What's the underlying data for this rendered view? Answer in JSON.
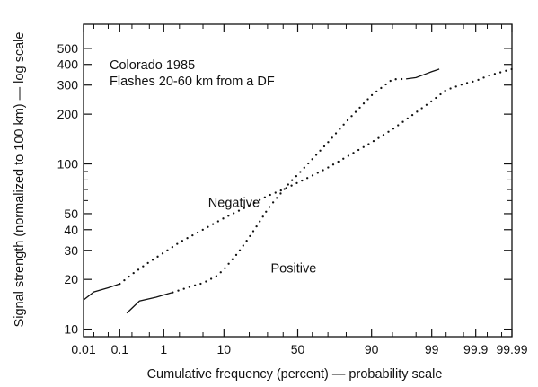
{
  "chart_data": {
    "type": "line",
    "title": "Colorado 1985",
    "subtitle": "Flashes 20-60 km from a DF",
    "xlabel": "Cumulative frequency (percent) — probability scale",
    "ylabel": "Signal strength (normalized to 100 km) — log scale",
    "x_scale": "probability",
    "y_scale": "log",
    "xlim": [
      0.01,
      99.99
    ],
    "ylim": [
      9,
      700
    ],
    "grid": false,
    "x_ticks": [
      0.01,
      0.1,
      1,
      10,
      50,
      90,
      99,
      99.9,
      99.99
    ],
    "x_tick_labels": [
      "0.01",
      "0.1",
      "1",
      "10",
      "50",
      "90",
      "99",
      "99.9",
      "99.99"
    ],
    "y_ticks": [
      10,
      20,
      30,
      40,
      50,
      100,
      200,
      300,
      400,
      500
    ],
    "y_tick_labels": [
      "10",
      "20",
      "30",
      "40",
      "50",
      "100",
      "200",
      "300",
      "400",
      "500"
    ],
    "series": [
      {
        "name": "Negative",
        "points": [
          [
            0.01,
            15
          ],
          [
            0.02,
            16.8
          ],
          [
            0.05,
            17.8
          ],
          [
            0.1,
            18.8
          ],
          [
            0.2,
            21.5
          ],
          [
            0.5,
            25.5
          ],
          [
            1,
            29
          ],
          [
            2,
            33.5
          ],
          [
            5,
            40
          ],
          [
            10,
            47
          ],
          [
            20,
            56
          ],
          [
            30,
            64
          ],
          [
            40,
            70
          ],
          [
            50,
            77
          ],
          [
            60,
            85
          ],
          [
            70,
            95
          ],
          [
            80,
            110
          ],
          [
            90,
            135
          ],
          [
            95,
            162
          ],
          [
            98,
            205
          ],
          [
            99,
            240
          ],
          [
            99.5,
            280
          ],
          [
            99.8,
            305
          ],
          [
            99.9,
            318
          ],
          [
            99.95,
            340
          ],
          [
            99.98,
            360
          ],
          [
            99.99,
            375
          ]
        ]
      },
      {
        "name": "Positive",
        "points": [
          [
            0.15,
            12.5
          ],
          [
            0.3,
            14.8
          ],
          [
            0.7,
            15.6
          ],
          [
            1,
            16.1
          ],
          [
            1.5,
            16.7
          ],
          [
            2,
            17.2
          ],
          [
            3,
            18
          ],
          [
            5,
            19
          ],
          [
            8,
            21
          ],
          [
            10,
            23
          ],
          [
            15,
            29
          ],
          [
            20,
            36
          ],
          [
            25,
            44
          ],
          [
            30,
            53
          ],
          [
            35,
            61
          ],
          [
            40,
            69
          ],
          [
            45,
            78
          ],
          [
            50,
            86
          ],
          [
            60,
            107
          ],
          [
            70,
            135
          ],
          [
            80,
            180
          ],
          [
            90,
            260
          ],
          [
            95,
            325
          ],
          [
            97,
            327
          ],
          [
            98,
            333
          ],
          [
            98.5,
            345
          ],
          [
            99,
            362
          ],
          [
            99.2,
            370
          ],
          [
            99.3,
            375
          ]
        ]
      }
    ],
    "annotations": [
      {
        "text": "Negative",
        "x": 6,
        "y": 55
      },
      {
        "text": "Positive",
        "x": 32,
        "y": 22
      }
    ]
  },
  "colors": {
    "ink": "#111111",
    "background": "#ffffff"
  }
}
